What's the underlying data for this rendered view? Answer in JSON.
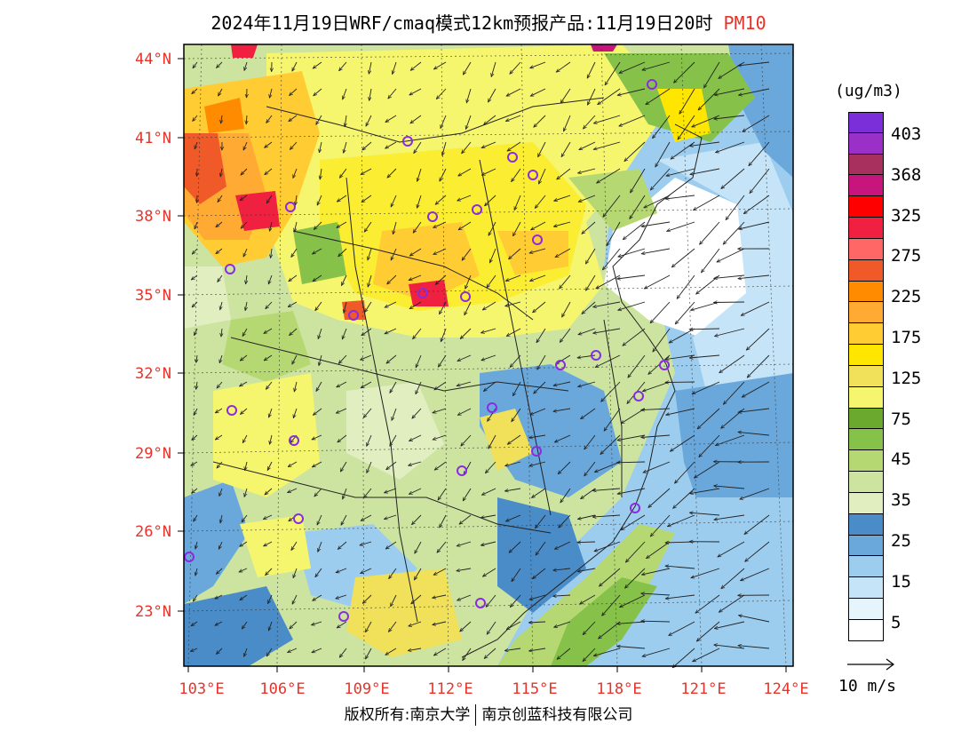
{
  "title": {
    "main": "2024年11月19日WRF/cmaq模式12km预报产品:11月19日20时",
    "pollutant": "PM10"
  },
  "colors": {
    "axis_label": "#e8332a",
    "pollutant_label": "#e8332a",
    "frame": "#000000"
  },
  "map": {
    "lat_labels": [
      "44°N",
      "41°N",
      "38°N",
      "35°N",
      "32°N",
      "29°N",
      "26°N",
      "23°N"
    ],
    "lon_labels": [
      "103°E",
      "106°E",
      "109°E",
      "112°E",
      "115°E",
      "118°E",
      "121°E",
      "124°E"
    ],
    "field": "PM10 concentration with 10m wind vectors",
    "city_markers_count": 26
  },
  "colorbar": {
    "unit": "(ug/m3)",
    "labels": [
      "403",
      "368",
      "325",
      "275",
      "225",
      "175",
      "125",
      "75",
      "45",
      "35",
      "25",
      "15",
      "5"
    ],
    "colors": [
      "#7b2fd8",
      "#9a30c8",
      "#a8305e",
      "#c8157d",
      "#ff0000",
      "#f02040",
      "#ff6666",
      "#f05a28",
      "#ff8c00",
      "#ffaa33",
      "#ffcc33",
      "#ffe600",
      "#f0e05a",
      "#f5f56e",
      "#6aa82e",
      "#86c24a",
      "#b6d872",
      "#cce4a0",
      "#e0eec0",
      "#4a8cc8",
      "#6aa8dc",
      "#9ccdef",
      "#c6e4f7",
      "#e6f4fc",
      "#ffffff"
    ]
  },
  "wind_reference": {
    "label": "10 m/s"
  },
  "footer": {
    "copyright": "版权所有:南京大学",
    "company": "南京创蓝科技有限公司"
  }
}
